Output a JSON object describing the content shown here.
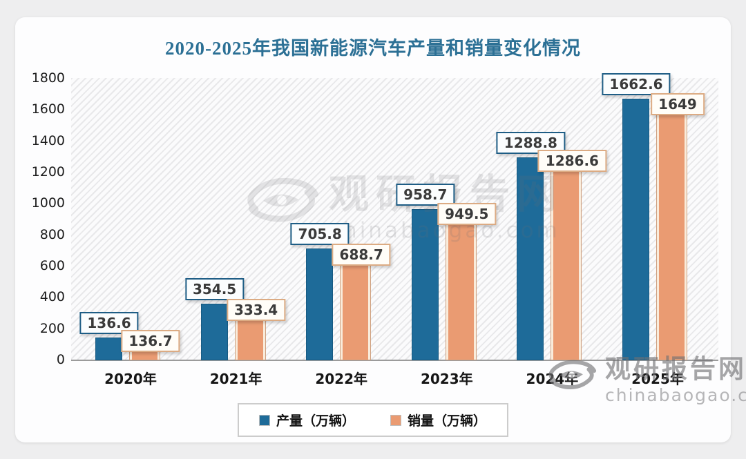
{
  "page": {
    "background_color": "#eeeeef",
    "card_color": "#fdfdfe"
  },
  "chart_data": {
    "type": "bar",
    "title": "2020-2025年我国新能源汽车产量和销量变化情况",
    "title_color": "#2c7095",
    "categories": [
      "2020年",
      "2021年",
      "2022年",
      "2023年",
      "2024年",
      "2025年"
    ],
    "series": [
      {
        "name": "产量（万辆）",
        "color": "#1e6b99",
        "values": [
          136.6,
          354.5,
          705.8,
          958.7,
          1288.8,
          1662.6
        ]
      },
      {
        "name": "销量（万辆）",
        "color": "#ea9b72",
        "values": [
          136.7,
          333.4,
          688.7,
          949.5,
          1286.6,
          1649
        ]
      }
    ],
    "ylim": [
      0,
      1800
    ],
    "yticks": [
      0,
      200,
      400,
      600,
      800,
      1000,
      1200,
      1400,
      1600,
      1800
    ],
    "grid": false,
    "legend_position": "bottom",
    "plot_background": "diagonal-hatch"
  },
  "watermark": {
    "site_name": "观研报告网",
    "site_url": "chinabaogao.com"
  }
}
